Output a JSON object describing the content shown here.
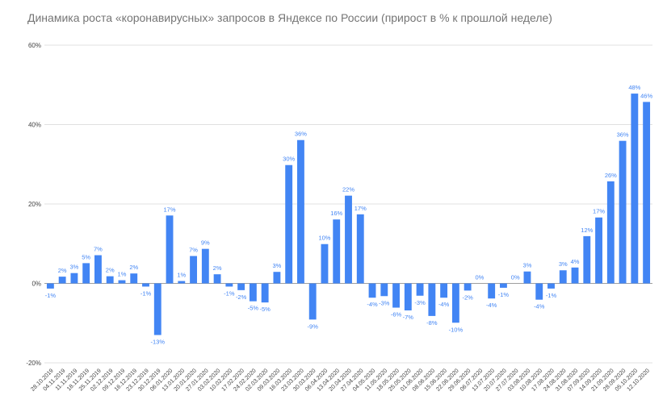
{
  "chart_data": {
    "type": "bar",
    "title": "Динамика роста «коронавирусных» запросов в Яндексе по России (прирост в % к прошлой неделе)",
    "xlabel": "",
    "ylabel": "",
    "ylim": [
      -20,
      60
    ],
    "yticks": [
      -20,
      0,
      20,
      40,
      60
    ],
    "ytick_labels": [
      "-20%",
      "0%",
      "20%",
      "40%",
      "60%"
    ],
    "grid": true,
    "bar_color": "#4285f4",
    "categories": [
      "28.10.2019",
      "04.11.2019",
      "11.11.2019",
      "18.11.2019",
      "25.11.2019",
      "02.12.2019",
      "09.12.2019",
      "16.12.2019",
      "23.12.2019",
      "30.12.2019",
      "06.01.2020",
      "13.01.2020",
      "20.01.2020",
      "27.01.2020",
      "03.02.2020",
      "10.02.2020",
      "17.02.2020",
      "24.02.2020",
      "02.03.2020",
      "09.03.2020",
      "16.03.2020",
      "23.03.2020",
      "30.03.2020",
      "06.04.2020",
      "13.04.2020",
      "20.04.2020",
      "27.04.2020",
      "04.05.2020",
      "11.05.2020",
      "18.05.2020",
      "25.05.2020",
      "01.06.2020",
      "08.06.2020",
      "15.06.2020",
      "22.06.2020",
      "29.06.2020",
      "06.07.2020",
      "13.07.2020",
      "20.07.2020",
      "27.07.2020",
      "03.08.2020",
      "10.08.2020",
      "17.08.2020",
      "24.08.2020",
      "31.08.2020",
      "07.09.2020",
      "14.09.2020",
      "21.09.2020",
      "28.09.2020",
      "05.10.2020",
      "12.10.2020"
    ],
    "values": [
      -1.3,
      1.7,
      2.6,
      5.1,
      7.1,
      1.8,
      0.8,
      2.5,
      -0.8,
      -13,
      17.1,
      0.6,
      6.9,
      8.7,
      2.3,
      -0.8,
      -1.7,
      -4.5,
      -4.8,
      2.9,
      29.8,
      36.1,
      -9.1,
      9.9,
      16.1,
      22.1,
      17.4,
      -3.6,
      -3.2,
      -6.1,
      -6.8,
      -3.1,
      -8.2,
      -3.6,
      -9.9,
      -1.8,
      0,
      -3.8,
      -1.1,
      0,
      3,
      -4.1,
      -1.3,
      3.3,
      4,
      11.9,
      16.6,
      25.7,
      35.9,
      47.8,
      45.7
    ],
    "labels": [
      "-1%",
      "2%",
      "3%",
      "5%",
      "7%",
      "2%",
      "1%",
      "2%",
      "-1%",
      "-13%",
      "17%",
      "1%",
      "7%",
      "9%",
      "2%",
      "-1%",
      "-2%",
      "-5%",
      "-5%",
      "3%",
      "30%",
      "36%",
      "-9%",
      "10%",
      "16%",
      "22%",
      "17%",
      "-4%",
      "-3%",
      "-6%",
      "-7%",
      "-3%",
      "-8%",
      "-4%",
      "-10%",
      "-2%",
      "0%",
      "-4%",
      "-1%",
      "0%",
      "3%",
      "-4%",
      "-1%",
      "3%",
      "4%",
      "12%",
      "17%",
      "26%",
      "36%",
      "48%",
      "46%"
    ]
  }
}
